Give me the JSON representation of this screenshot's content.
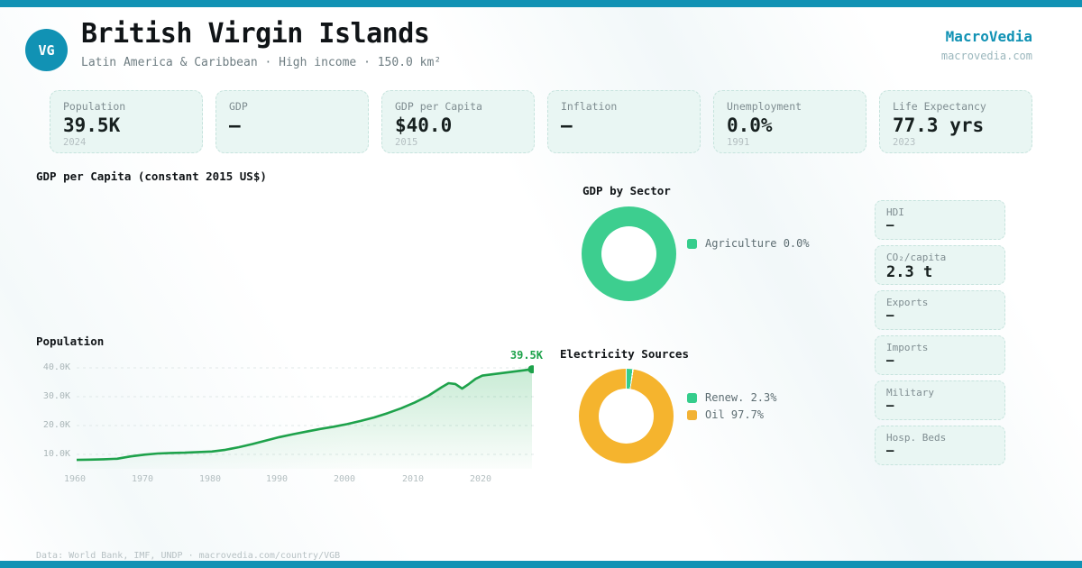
{
  "brand": {
    "name": "MacroVedia",
    "domain": "macrovedia.com"
  },
  "header": {
    "badge": "VG",
    "title": "British Virgin Islands",
    "subtitle": "Latin America & Caribbean · High income · 150.0 km²"
  },
  "stats": [
    {
      "label": "Population",
      "value": "39.5K",
      "year": "2024"
    },
    {
      "label": "GDP",
      "value": "—",
      "year": ""
    },
    {
      "label": "GDP per Capita",
      "value": "$40.0",
      "year": "2015"
    },
    {
      "label": "Inflation",
      "value": "—",
      "year": ""
    },
    {
      "label": "Unemployment",
      "value": "0.0%",
      "year": "1991"
    },
    {
      "label": "Life Expectancy",
      "value": "77.3 yrs",
      "year": "2023"
    }
  ],
  "side_stats": [
    {
      "label": "HDI",
      "value": "—"
    },
    {
      "label": "CO₂/capita",
      "value": "2.3 t"
    },
    {
      "label": "Exports",
      "value": "—"
    },
    {
      "label": "Imports",
      "value": "—"
    },
    {
      "label": "Military",
      "value": "—"
    },
    {
      "label": "Hosp. Beds",
      "value": "—"
    }
  ],
  "gdp_capita_section": {
    "title": "GDP per Capita (constant 2015 US$)"
  },
  "chart_data": [
    {
      "id": "gdp_by_sector",
      "type": "pie",
      "title": "GDP by Sector",
      "slices": [
        {
          "label": "Agriculture",
          "value": 0.0
        }
      ],
      "legend": [
        "Agriculture 0.0%"
      ],
      "legend_colors": [
        "#35cd8c"
      ],
      "render_slices": [
        {
          "color": "#3dce8f",
          "pct": 100
        }
      ],
      "legend_position": "right"
    },
    {
      "id": "population",
      "type": "area",
      "title": "Population",
      "x": [
        1960,
        1962,
        1964,
        1966,
        1968,
        1970,
        1972,
        1974,
        1976,
        1978,
        1980,
        1982,
        1984,
        1986,
        1988,
        1990,
        1992,
        1994,
        1996,
        1998,
        2000,
        2002,
        2004,
        2006,
        2008,
        2010,
        2012,
        2014,
        2015,
        2016,
        2017,
        2018,
        2019,
        2020,
        2022,
        2024
      ],
      "values": [
        8.1,
        8.2,
        8.3,
        8.5,
        9.3,
        9.9,
        10.3,
        10.5,
        10.6,
        10.8,
        11.0,
        11.6,
        12.5,
        13.6,
        14.8,
        16.0,
        17.0,
        17.9,
        18.8,
        19.6,
        20.5,
        21.6,
        22.8,
        24.3,
        26.0,
        28.0,
        30.3,
        33.3,
        34.7,
        34.4,
        32.8,
        34.4,
        36.2,
        37.3,
        38.4,
        39.5
      ],
      "unit": "thousands of people",
      "end_label": "39.5K",
      "yticks": [
        "10.0K",
        "20.0K",
        "30.0K",
        "40.0K"
      ],
      "xticks": [
        "1960",
        "1970",
        "1980",
        "1990",
        "2000",
        "2010",
        "2020"
      ],
      "ylim": [
        5,
        42
      ],
      "grid": "dashed horizontal",
      "line_color": "#1ea24b"
    },
    {
      "id": "electricity",
      "type": "pie",
      "title": "Electricity Sources",
      "slices": [
        {
          "label": "Renew.",
          "value": 2.3
        },
        {
          "label": "Oil",
          "value": 97.7
        }
      ],
      "legend": [
        "Renew. 2.3%",
        "Oil 97.7%"
      ],
      "legend_colors": [
        "#35cd8c",
        "#f2b234"
      ],
      "render_slices": [
        {
          "color": "#35cd8c",
          "pct": 2.3
        },
        {
          "color": "#f5b42e",
          "pct": 97.7
        }
      ],
      "legend_position": "right"
    }
  ],
  "footer": {
    "text": "Data: World Bank, IMF, UNDP · macrovedia.com/country/VGB"
  },
  "colors": {
    "accent_teal": "#1192b4",
    "card_bg": "#e9f6f3",
    "green": "#35cd8c",
    "line_green": "#1ea24b",
    "amber": "#f2b234"
  }
}
